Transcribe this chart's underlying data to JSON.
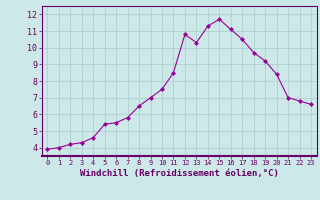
{
  "x": [
    0,
    1,
    2,
    3,
    4,
    5,
    6,
    7,
    8,
    9,
    10,
    11,
    12,
    13,
    14,
    15,
    16,
    17,
    18,
    19,
    20,
    21,
    22,
    23
  ],
  "y": [
    3.9,
    4.0,
    4.2,
    4.3,
    4.6,
    5.4,
    5.5,
    5.8,
    6.5,
    7.0,
    7.5,
    8.5,
    10.8,
    10.3,
    11.3,
    11.7,
    11.1,
    10.5,
    9.7,
    9.2,
    8.4,
    7.0,
    6.8,
    6.6
  ],
  "xlim": [
    -0.5,
    23.5
  ],
  "ylim": [
    3.5,
    12.5
  ],
  "yticks": [
    4,
    5,
    6,
    7,
    8,
    9,
    10,
    11,
    12
  ],
  "xticks": [
    0,
    1,
    2,
    3,
    4,
    5,
    6,
    7,
    8,
    9,
    10,
    11,
    12,
    13,
    14,
    15,
    16,
    17,
    18,
    19,
    20,
    21,
    22,
    23
  ],
  "xlabel": "Windchill (Refroidissement éolien,°C)",
  "line_color": "#990099",
  "marker": "D",
  "marker_size": 2,
  "bg_color": "#cce8e8",
  "grid_color": "#aacccc",
  "tick_color": "#660066",
  "axis_color": "#660066",
  "xlabel_fontsize": 6.5,
  "tick_fontsize_x": 5.0,
  "tick_fontsize_y": 6.0
}
